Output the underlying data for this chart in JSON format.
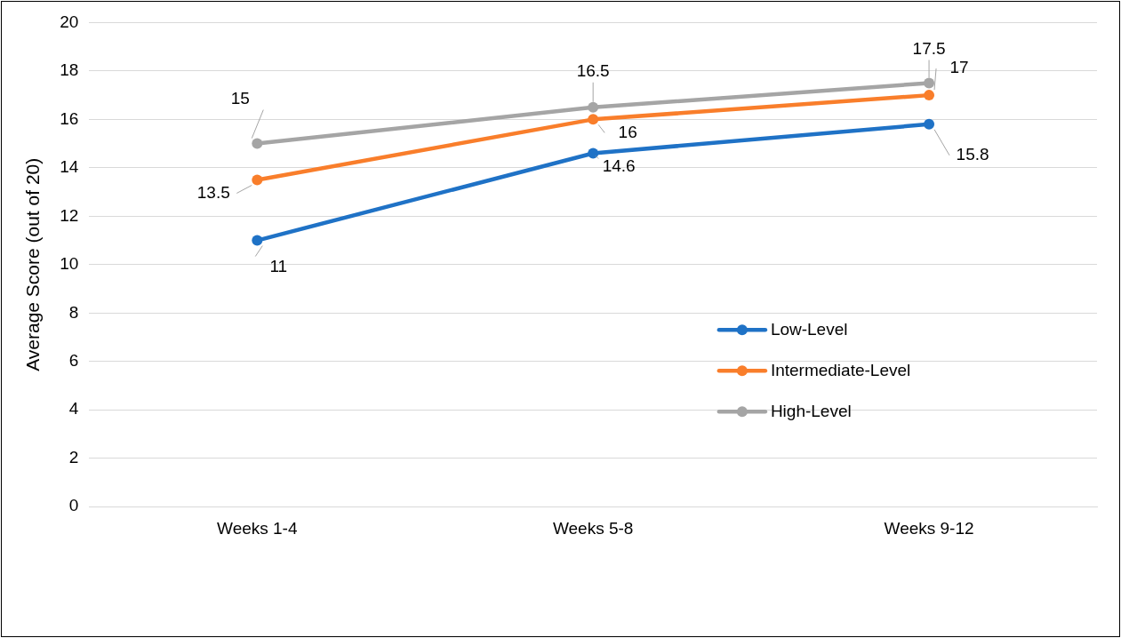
{
  "chart_data": {
    "type": "line",
    "ylabel": "Average Score (out of 20)",
    "categories": [
      "Weeks 1-4",
      "Weeks 5-8",
      "Weeks 9-12"
    ],
    "series": [
      {
        "name": "Low-Level",
        "color": "#1f72c6",
        "values": [
          11,
          14.6,
          15.8
        ]
      },
      {
        "name": "Intermediate-Level",
        "color": "#f97e2b",
        "values": [
          13.5,
          16,
          17
        ]
      },
      {
        "name": "High-Level",
        "color": "#a5a5a5",
        "values": [
          15,
          16.5,
          17.5
        ]
      }
    ],
    "ylim": [
      0,
      20
    ],
    "yticks": [
      0,
      2,
      4,
      6,
      8,
      10,
      12,
      14,
      16,
      18,
      20
    ],
    "grid": "y",
    "legend": "bottom right",
    "marker": "circle",
    "line_style": "solid",
    "data_labels": true
  }
}
